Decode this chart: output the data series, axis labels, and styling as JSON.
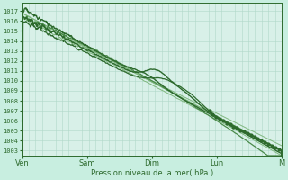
{
  "bg_color": "#c8eee0",
  "plot_bg_color": "#d8f0e8",
  "grid_color_v": "#b0d8c8",
  "grid_color_h": "#b0d8c8",
  "line_color_dark": "#2d6a2d",
  "line_color_mid": "#4a8a4a",
  "line_color_light": "#80b880",
  "ylabel_values": [
    1003,
    1004,
    1005,
    1006,
    1007,
    1008,
    1009,
    1010,
    1011,
    1012,
    1013,
    1014,
    1015,
    1016,
    1017
  ],
  "ylim": [
    1002.5,
    1017.8
  ],
  "xlabel": "Pression niveau de la mer( hPa )",
  "xtick_labels": [
    "Ven",
    "Sam",
    "Dim",
    "Lun",
    "M"
  ],
  "xtick_positions": [
    0,
    0.25,
    0.5,
    0.75,
    1.0
  ]
}
